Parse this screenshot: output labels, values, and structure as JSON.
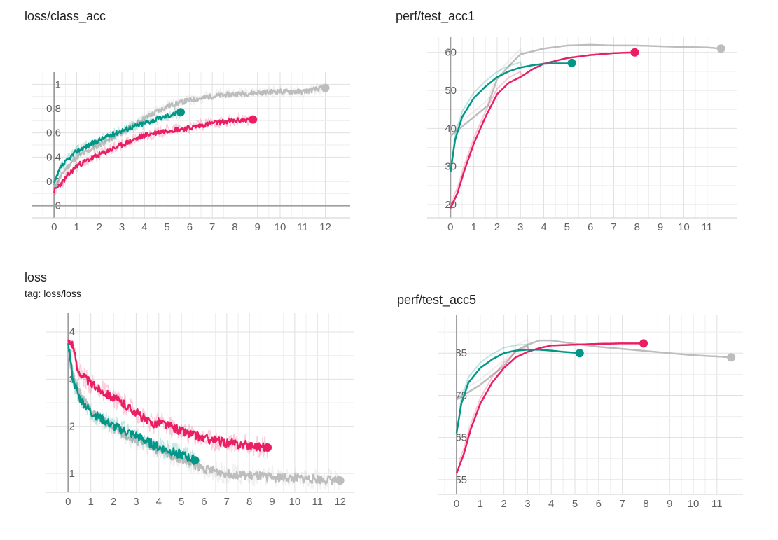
{
  "chart_data": [
    {
      "type": "line",
      "title": "loss/class_acc",
      "subtitle": "",
      "xlim": [
        -1,
        13.1
      ],
      "ylim": [
        -0.1,
        1.1
      ],
      "xticks": [
        0,
        1,
        2,
        3,
        4,
        5,
        6,
        7,
        8,
        9,
        10,
        11,
        12
      ],
      "yticks": [
        0,
        0.2,
        0.4,
        0.6,
        0.8,
        1
      ],
      "ytick_labels": [
        "0",
        "0.2",
        "0.4",
        "0.6",
        "0.8",
        "1"
      ],
      "grid": true,
      "series": [
        {
          "color": "#bdbdbd",
          "noise": 0.035,
          "seed": 11,
          "x_end": 12.0,
          "points": [
            [
              0,
              0.15
            ],
            [
              0.5,
              0.3
            ],
            [
              1,
              0.4
            ],
            [
              2,
              0.5
            ],
            [
              3,
              0.6
            ],
            [
              4,
              0.72
            ],
            [
              5,
              0.82
            ],
            [
              6,
              0.87
            ],
            [
              7,
              0.9
            ],
            [
              8,
              0.92
            ],
            [
              9,
              0.93
            ],
            [
              10,
              0.94
            ],
            [
              11,
              0.94
            ],
            [
              12,
              0.97
            ]
          ]
        },
        {
          "color": "#e91e63",
          "noise": 0.035,
          "seed": 23,
          "x_end": 8.8,
          "points": [
            [
              0,
              0.12
            ],
            [
              0.3,
              0.18
            ],
            [
              1,
              0.33
            ],
            [
              2,
              0.42
            ],
            [
              3,
              0.5
            ],
            [
              4,
              0.58
            ],
            [
              5,
              0.62
            ],
            [
              6,
              0.64
            ],
            [
              7,
              0.68
            ],
            [
              8,
              0.7
            ],
            [
              8.8,
              0.71
            ]
          ]
        },
        {
          "color": "#009688",
          "noise": 0.035,
          "seed": 37,
          "x_end": 5.6,
          "points": [
            [
              0,
              0.18
            ],
            [
              0.3,
              0.32
            ],
            [
              1,
              0.45
            ],
            [
              2,
              0.54
            ],
            [
              3,
              0.62
            ],
            [
              4,
              0.68
            ],
            [
              5,
              0.74
            ],
            [
              5.6,
              0.77
            ]
          ]
        }
      ]
    },
    {
      "type": "line",
      "title": "perf/test_acc1",
      "subtitle": "",
      "xlim": [
        -1,
        12.3
      ],
      "ylim": [
        16.5,
        64
      ],
      "xticks": [
        0,
        1,
        2,
        3,
        4,
        5,
        6,
        7,
        8,
        9,
        10,
        11
      ],
      "yticks": [
        20,
        30,
        40,
        50,
        60
      ],
      "ytick_labels": [
        "20",
        "30",
        "40",
        "50",
        "60"
      ],
      "grid": true,
      "series": [
        {
          "color": "#bdbdbd",
          "noise": 0,
          "seed": 0,
          "x_end": 11.6,
          "points": [
            [
              0,
              38
            ],
            [
              1,
              43
            ],
            [
              1.6,
              46
            ],
            [
              2,
              53
            ],
            [
              2.6,
              57
            ],
            [
              3,
              59.5
            ],
            [
              4,
              61
            ],
            [
              5,
              61.8
            ],
            [
              6,
              62
            ],
            [
              7,
              61.8
            ],
            [
              8,
              61.8
            ],
            [
              9,
              61.6
            ],
            [
              10,
              61.4
            ],
            [
              11,
              61.3
            ],
            [
              11.6,
              61
            ]
          ]
        },
        {
          "color": "#e91e63",
          "noise": 0,
          "seed": 0,
          "x_end": 7.9,
          "points": [
            [
              0,
              19
            ],
            [
              0.3,
              23
            ],
            [
              0.6,
              29
            ],
            [
              1,
              36
            ],
            [
              1.5,
              43
            ],
            [
              2,
              49
            ],
            [
              2.5,
              52
            ],
            [
              3,
              53.5
            ],
            [
              3.5,
              55.5
            ],
            [
              4,
              57
            ],
            [
              5,
              58.5
            ],
            [
              6,
              59.3
            ],
            [
              7,
              59.8
            ],
            [
              7.9,
              60
            ]
          ]
        },
        {
          "color": "#009688",
          "noise": 0,
          "seed": 0,
          "x_end": 5.2,
          "points": [
            [
              0,
              28.5
            ],
            [
              0.2,
              37
            ],
            [
              0.5,
              43
            ],
            [
              1,
              48
            ],
            [
              1.5,
              51
            ],
            [
              2,
              53.5
            ],
            [
              2.5,
              55
            ],
            [
              3,
              56
            ],
            [
              3.5,
              56.6
            ],
            [
              4,
              57
            ],
            [
              4.5,
              57.1
            ],
            [
              5,
              57.1
            ],
            [
              5.2,
              57.2
            ]
          ]
        }
      ]
    },
    {
      "type": "line",
      "title": "loss",
      "subtitle": "tag: loss/loss",
      "xlim": [
        -1,
        12.6
      ],
      "ylim": [
        0.6,
        4.4
      ],
      "xticks": [
        0,
        1,
        2,
        3,
        4,
        5,
        6,
        7,
        8,
        9,
        10,
        11,
        12
      ],
      "yticks": [
        1,
        2,
        3,
        4
      ],
      "ytick_labels": [
        "1",
        "2",
        "3",
        "4"
      ],
      "grid": true,
      "series": [
        {
          "color": "#bdbdbd",
          "noise": 0.05,
          "seed": 51,
          "x_end": 12.0,
          "points": [
            [
              0,
              3.6
            ],
            [
              0.3,
              2.9
            ],
            [
              1,
              2.3
            ],
            [
              2,
              1.95
            ],
            [
              3,
              1.7
            ],
            [
              4,
              1.5
            ],
            [
              5,
              1.3
            ],
            [
              6,
              1.1
            ],
            [
              7,
              1.0
            ],
            [
              8,
              0.95
            ],
            [
              9,
              0.92
            ],
            [
              10,
              0.9
            ],
            [
              11,
              0.88
            ],
            [
              12,
              0.85
            ]
          ]
        },
        {
          "color": "#e91e63",
          "noise": 0.05,
          "seed": 63,
          "x_end": 8.8,
          "points": [
            [
              0,
              3.8
            ],
            [
              0.2,
              3.75
            ],
            [
              0.4,
              3.2
            ],
            [
              1,
              2.9
            ],
            [
              2,
              2.6
            ],
            [
              3,
              2.3
            ],
            [
              3.5,
              2.1
            ],
            [
              3.8,
              2.05
            ],
            [
              4,
              2.1
            ],
            [
              5,
              1.9
            ],
            [
              6,
              1.75
            ],
            [
              7,
              1.65
            ],
            [
              8,
              1.6
            ],
            [
              8.8,
              1.55
            ]
          ]
        },
        {
          "color": "#009688",
          "noise": 0.05,
          "seed": 77,
          "x_end": 5.6,
          "points": [
            [
              0,
              3.8
            ],
            [
              0.2,
              3.0
            ],
            [
              0.5,
              2.6
            ],
            [
              1,
              2.3
            ],
            [
              2,
              2.0
            ],
            [
              3,
              1.8
            ],
            [
              4,
              1.55
            ],
            [
              5,
              1.4
            ],
            [
              5.6,
              1.28
            ]
          ]
        }
      ]
    },
    {
      "type": "line",
      "title": "perf/test_acc5",
      "subtitle": "",
      "xlim": [
        -0.8,
        12.1
      ],
      "ylim": [
        51.5,
        94
      ],
      "xticks": [
        0,
        1,
        2,
        3,
        4,
        5,
        6,
        7,
        8,
        9,
        10,
        11
      ],
      "yticks": [
        55,
        65,
        75,
        85
      ],
      "ytick_labels": [
        "55",
        "65",
        "75",
        "85"
      ],
      "grid": true,
      "series": [
        {
          "color": "#bdbdbd",
          "noise": 0,
          "seed": 0,
          "x_end": 11.6,
          "points": [
            [
              0,
              74
            ],
            [
              1,
              77.5
            ],
            [
              2,
              82
            ],
            [
              2.5,
              85.5
            ],
            [
              3,
              87
            ],
            [
              3.5,
              88
            ],
            [
              4,
              88
            ],
            [
              5,
              87.2
            ],
            [
              6,
              86.5
            ],
            [
              7,
              86
            ],
            [
              8,
              85.5
            ],
            [
              9,
              85
            ],
            [
              10,
              84.5
            ],
            [
              11,
              84.2
            ],
            [
              11.6,
              84
            ]
          ]
        },
        {
          "color": "#e91e63",
          "noise": 0,
          "seed": 0,
          "x_end": 7.9,
          "points": [
            [
              0,
              56.5
            ],
            [
              0.3,
              61
            ],
            [
              0.6,
              67
            ],
            [
              1,
              73
            ],
            [
              1.5,
              78
            ],
            [
              2,
              81.5
            ],
            [
              2.5,
              84
            ],
            [
              3,
              85.3
            ],
            [
              3.5,
              86.2
            ],
            [
              4,
              86.8
            ],
            [
              5,
              87
            ],
            [
              6,
              87.2
            ],
            [
              7,
              87.3
            ],
            [
              7.9,
              87.3
            ]
          ]
        },
        {
          "color": "#009688",
          "noise": 0,
          "seed": 0,
          "x_end": 5.2,
          "points": [
            [
              0,
              66
            ],
            [
              0.2,
              73
            ],
            [
              0.5,
              78
            ],
            [
              1,
              81.5
            ],
            [
              1.5,
              83.5
            ],
            [
              2,
              85
            ],
            [
              2.5,
              85.6
            ],
            [
              3,
              85.8
            ],
            [
              3.5,
              85.8
            ],
            [
              4,
              85.6
            ],
            [
              4.5,
              85.3
            ],
            [
              5,
              85.1
            ],
            [
              5.2,
              85
            ]
          ]
        }
      ]
    }
  ]
}
